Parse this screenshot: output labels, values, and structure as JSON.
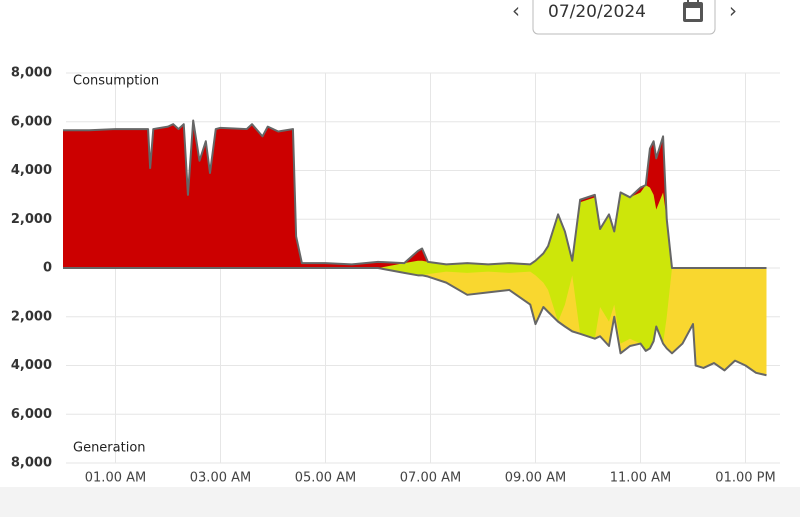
{
  "header": {
    "date": "07/20/2024"
  },
  "chart_data": {
    "type": "area",
    "annotations": [
      "Consumption",
      "Generation"
    ],
    "x": [
      0,
      0.5,
      1,
      1.5,
      1.62,
      1.66,
      1.72,
      2.0,
      2.1,
      2.2,
      2.3,
      2.38,
      2.48,
      2.6,
      2.72,
      2.8,
      2.91,
      3.0,
      3.5,
      3.6,
      3.8,
      3.9,
      4.1,
      4.38,
      4.44,
      4.55,
      5.0,
      5.5,
      6.0,
      6.5,
      6.76,
      6.84,
      6.95,
      7.3,
      7.7,
      8.1,
      8.5,
      8.9,
      9.0,
      9.15,
      9.24,
      9.43,
      9.56,
      9.7,
      9.85,
      10.13,
      10.23,
      10.4,
      10.5,
      10.62,
      10.8,
      11.0,
      11.1,
      11.18,
      11.25,
      11.3,
      11.43,
      11.5,
      11.6,
      11.8,
      12.0,
      12.05,
      12.2,
      12.4,
      12.6,
      12.8,
      13.0,
      13.2,
      13.4
    ],
    "series": [
      {
        "color": "#cc0000",
        "values": [
          5650,
          5650,
          5700,
          5700,
          5700,
          4100,
          5700,
          5800,
          5900,
          5700,
          5900,
          3000,
          6050,
          4400,
          5200,
          3900,
          5700,
          5750,
          5700,
          5900,
          5400,
          5800,
          5600,
          5700,
          1300,
          200,
          200,
          150,
          250,
          200,
          700,
          800,
          250,
          150,
          200,
          150,
          200,
          150,
          300,
          600,
          900,
          2200,
          1500,
          300,
          2800,
          3000,
          1600,
          2200,
          1500,
          3100,
          2900,
          3300,
          3400,
          4900,
          5200,
          4500,
          5400,
          2000,
          0,
          0,
          0,
          0,
          0,
          0,
          0,
          0,
          0,
          0,
          0
        ]
      },
      {
        "color": "#f9d72f",
        "values": [
          0,
          0,
          0,
          0,
          0,
          0,
          0,
          0,
          0,
          0,
          0,
          0,
          0,
          0,
          0,
          0,
          0,
          0,
          0,
          0,
          0,
          0,
          0,
          0,
          0,
          0,
          0,
          0,
          0,
          -200,
          -300,
          -300,
          -350,
          -600,
          -1100,
          -1000,
          -900,
          -1500,
          -2300,
          -1600,
          -1800,
          -2200,
          -2400,
          -2600,
          -2700,
          -2900,
          -2800,
          -3200,
          -2000,
          -3500,
          -3200,
          -3100,
          -3400,
          -3300,
          -3000,
          -2400,
          -3100,
          -3300,
          -3500,
          -3100,
          -2300,
          -4000,
          -4100,
          -3900,
          -4200,
          -3800,
          -4000,
          -4300,
          -4400
        ]
      },
      {
        "color": "#cde60a",
        "values": [
          0,
          0,
          0,
          0,
          0,
          0,
          0,
          0,
          0,
          0,
          0,
          0,
          0,
          0,
          0,
          0,
          0,
          0,
          0,
          0,
          0,
          0,
          0,
          0,
          0,
          0,
          0,
          0,
          0,
          200,
          300,
          300,
          250,
          150,
          200,
          150,
          200,
          150,
          300,
          600,
          900,
          2200,
          1500,
          300,
          2700,
          2900,
          1600,
          2200,
          1500,
          3100,
          2900,
          3100,
          3400,
          3300,
          3000,
          2400,
          3100,
          2000,
          0,
          0,
          0,
          0,
          0,
          0,
          0,
          0,
          0,
          0,
          0
        ]
      }
    ],
    "line_color": "#666666",
    "xlim": [
      0,
      13.6
    ],
    "xticks": [
      {
        "value": 1,
        "label": "01.00 AM"
      },
      {
        "value": 3,
        "label": "03.00 AM"
      },
      {
        "value": 5,
        "label": "05.00 AM"
      },
      {
        "value": 7,
        "label": "07.00 AM"
      },
      {
        "value": 9,
        "label": "09.00 AM"
      },
      {
        "value": 11,
        "label": "11.00 AM"
      },
      {
        "value": 13,
        "label": "01.00 PM"
      }
    ],
    "ylim": [
      -8000,
      8000
    ],
    "yticks": [
      {
        "value": 8000,
        "label": "8,000"
      },
      {
        "value": 6000,
        "label": "6,000"
      },
      {
        "value": 4000,
        "label": "4,000"
      },
      {
        "value": 2000,
        "label": "2,000"
      },
      0,
      {
        "value": -2000,
        "label": "2,000"
      },
      {
        "value": -4000,
        "label": "4,000"
      },
      {
        "value": -6000,
        "label": "6,000"
      },
      {
        "value": -8000,
        "label": "8,000"
      }
    ],
    "grid": true
  }
}
